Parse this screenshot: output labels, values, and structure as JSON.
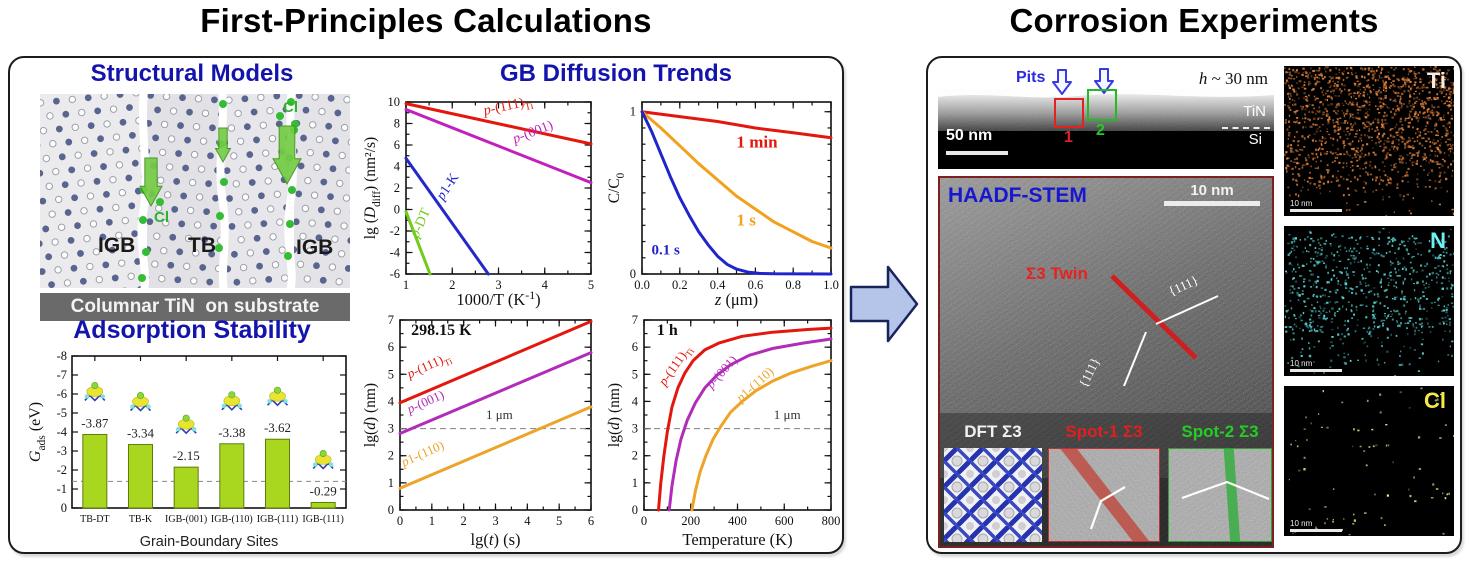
{
  "titles": {
    "left": "First-Principles Calculations",
    "right": "Corrosion Experiments"
  },
  "left_panel": {
    "structural": {
      "title": "Structural Models",
      "grain_labels": [
        "IGB",
        "TB",
        "IGB"
      ],
      "cl_labels": [
        "Cl",
        "Cl"
      ],
      "banner": "Columnar TiN  on substrate"
    },
    "adsorption": {
      "title": "Adsorption Stability"
    },
    "diffusion": {
      "title": "GB Diffusion Trends"
    }
  },
  "right_panel": {
    "stem_top": {
      "pits": "Pits",
      "h_italic": "h",
      "h_rest": " ~ 30 nm",
      "scalebar": "50 nm",
      "box1": "1",
      "box2": "2",
      "layer_top": "TiN",
      "layer_bottom": "Si"
    },
    "haadf": {
      "title": "HAADF-STEM",
      "scalebar": "10 nm",
      "twin": "Σ3 Twin",
      "plane_upper": "{111}",
      "plane_lower": "{111}",
      "insets": [
        {
          "label": "DFT Σ3"
        },
        {
          "label": "Spot-1 Σ3"
        },
        {
          "label": "Spot-2 Σ3"
        }
      ]
    },
    "eds_maps": [
      {
        "label": "Ti",
        "color": "#f3ecdf",
        "dot": "#e2813a",
        "scalebar": "10 nm"
      },
      {
        "label": "N",
        "color": "#6ff0f0",
        "dot": "#59d6d6",
        "scalebar": "10 nm"
      },
      {
        "label": "Cl",
        "color": "#f3ea45",
        "dot": "#e9e98f",
        "scalebar": "10 nm"
      }
    ]
  },
  "chart_data": [
    {
      "id": "adsorption",
      "type": "bar",
      "title": "Adsorption Stability",
      "xlabel": "Grain-Boundary Sites",
      "ylabel_segs": [
        [
          "G",
          "i"
        ],
        [
          "ads",
          "s"
        ],
        [
          " (eV)",
          ""
        ]
      ],
      "categories": [
        "TB-DT",
        "TB-K",
        "IGB-(001)",
        "IGB-(110)",
        "IGB-(111)",
        "IGB-(111)"
      ],
      "values": [
        -3.87,
        -3.34,
        -2.15,
        -3.38,
        -3.62,
        -0.29
      ],
      "ylim": [
        0,
        -8
      ],
      "ytick": 1,
      "refline_y": -1.4,
      "bar_color": "#a9d71f",
      "bar_edge": "#5d7d0a"
    },
    {
      "id": "arrhenius",
      "type": "line",
      "xlim": [
        1,
        5
      ],
      "ylim": [
        -6,
        10
      ],
      "xtick": 1,
      "xminor": 0.5,
      "ytick": 2,
      "yminor": 1,
      "xfmt": 0,
      "xlabel_segs": [
        [
          "1000/T (K",
          ""
        ],
        [
          "-1",
          "p"
        ],
        [
          ")",
          ""
        ]
      ],
      "ylabel_segs": [
        [
          "lg (",
          ""
        ],
        [
          "D",
          "i"
        ],
        [
          "diff",
          "s"
        ],
        [
          ") (nm²/s)",
          ""
        ]
      ],
      "series": [
        {
          "name": "p-(111)Ti",
          "color": "#e3170d",
          "points": [
            [
              1,
              9.85
            ],
            [
              5,
              6.1
            ]
          ]
        },
        {
          "name": "p-(001)",
          "color": "#c21fbc",
          "points": [
            [
              1,
              9.3
            ],
            [
              5,
              2.5
            ]
          ]
        },
        {
          "name": "p1-K",
          "color": "#2328c9",
          "points": [
            [
              1,
              4.75
            ],
            [
              2.78,
              -6
            ]
          ]
        },
        {
          "name": "p-DT",
          "color": "#72ca1b",
          "points": [
            [
              1,
              -0.2
            ],
            [
              1.52,
              -6
            ]
          ]
        }
      ],
      "labels": [
        {
          "segs": [
            [
              "p",
              "i"
            ],
            [
              "-(111)",
              ""
            ],
            [
              "Ti",
              "s"
            ]
          ],
          "x": 2.7,
          "y": 8.8,
          "rot": -12,
          "color": "#e3170d",
          "size": 14
        },
        {
          "segs": [
            [
              "p",
              "i"
            ],
            [
              "-(001)",
              ""
            ]
          ],
          "x": 3.35,
          "y": 6.15,
          "rot": -21,
          "color": "#c21fbc",
          "size": 14
        },
        {
          "segs": [
            [
              "p",
              "i"
            ],
            [
              "1-K",
              ""
            ]
          ],
          "x": 1.8,
          "y": 0.8,
          "rot": -56,
          "color": "#2328c9",
          "size": 14
        },
        {
          "segs": [
            [
              "p",
              "i"
            ],
            [
              "-DT",
              ""
            ]
          ],
          "x": 1.26,
          "y": -2.7,
          "rot": -66,
          "color": "#72ca1b",
          "size": 14
        }
      ]
    },
    {
      "id": "conc",
      "type": "line",
      "xlim": [
        0,
        1
      ],
      "ylim": [
        0,
        1.06
      ],
      "xtick": 0.2,
      "xminor": 0.1,
      "ytick": 1,
      "yminor": 0.1,
      "xfmt": 1,
      "xlabel_segs": [
        [
          "z",
          "i"
        ],
        [
          " (μm)",
          ""
        ]
      ],
      "ylabel_segs": [
        [
          "C/C",
          ""
        ],
        [
          "0",
          "s"
        ]
      ],
      "series": [
        {
          "name": "1 min",
          "color": "#e3170d",
          "points": [
            [
              0,
              1
            ],
            [
              0.2,
              0.97
            ],
            [
              0.4,
              0.94
            ],
            [
              0.6,
              0.9
            ],
            [
              0.8,
              0.87
            ],
            [
              1,
              0.84
            ]
          ]
        },
        {
          "name": "1 s",
          "color": "#f2a11c",
          "points": [
            [
              0,
              1
            ],
            [
              0.1,
              0.9
            ],
            [
              0.2,
              0.79
            ],
            [
              0.3,
              0.68
            ],
            [
              0.4,
              0.58
            ],
            [
              0.5,
              0.48
            ],
            [
              0.6,
              0.4
            ],
            [
              0.7,
              0.32
            ],
            [
              0.8,
              0.26
            ],
            [
              0.9,
              0.2
            ],
            [
              1,
              0.16
            ]
          ]
        },
        {
          "name": "0.1 s",
          "color": "#1f24cb",
          "points": [
            [
              0,
              1
            ],
            [
              0.05,
              0.88
            ],
            [
              0.1,
              0.74
            ],
            [
              0.15,
              0.6
            ],
            [
              0.2,
              0.47
            ],
            [
              0.25,
              0.36
            ],
            [
              0.3,
              0.26
            ],
            [
              0.35,
              0.18
            ],
            [
              0.4,
              0.11
            ],
            [
              0.45,
              0.06
            ],
            [
              0.5,
              0.03
            ],
            [
              0.56,
              0.012
            ],
            [
              0.62,
              0.004
            ],
            [
              0.7,
              0.001
            ],
            [
              1,
              0
            ]
          ]
        }
      ],
      "labels": [
        {
          "text": "1 min",
          "x": 0.5,
          "y": 0.78,
          "color": "#e3170d",
          "size": 17,
          "bold": true
        },
        {
          "text": "1 s",
          "x": 0.5,
          "y": 0.3,
          "color": "#f2a11c",
          "size": 17,
          "bold": true
        },
        {
          "text": "0.1 s",
          "x": 0.05,
          "y": 0.12,
          "color": "#1f24cb",
          "size": 15,
          "bold": true
        }
      ]
    },
    {
      "id": "growth_time",
      "type": "line",
      "xlim": [
        0,
        6
      ],
      "ylim": [
        0,
        7
      ],
      "xtick": 1,
      "xminor": 0.5,
      "ytick": 1,
      "yminor": 0.5,
      "xfmt": 0,
      "xlabel_segs": [
        [
          "lg(",
          ""
        ],
        [
          "t",
          "i"
        ],
        [
          ") (s)",
          ""
        ]
      ],
      "ylabel_segs": [
        [
          "lg(",
          ""
        ],
        [
          "d",
          "i"
        ],
        [
          ") (nm)",
          ""
        ]
      ],
      "refline": {
        "y": 3,
        "label": "1 μm",
        "lx": 2.7,
        "ly": 3.35
      },
      "series": [
        {
          "name": "p-(111)Ti",
          "color": "#e3170d",
          "points": [
            [
              0,
              3.95
            ],
            [
              6,
              6.95
            ]
          ]
        },
        {
          "name": "p-(001)",
          "color": "#b12cb8",
          "points": [
            [
              0,
              2.82
            ],
            [
              6,
              5.8
            ]
          ]
        },
        {
          "name": "p1-(110)",
          "color": "#eda428",
          "points": [
            [
              0,
              0.8
            ],
            [
              6,
              3.8
            ]
          ]
        }
      ],
      "labels": [
        {
          "text": "298.15 K",
          "x": 0.35,
          "y": 6.45,
          "color": "#111111",
          "size": 16,
          "bold": true
        },
        {
          "segs": [
            [
              "p",
              "i"
            ],
            [
              "-(111)",
              ""
            ],
            [
              "Ti",
              "s"
            ]
          ],
          "x": 0.3,
          "y": 4.85,
          "rot": -24,
          "color": "#e3170d",
          "size": 13
        },
        {
          "segs": [
            [
              "p",
              "i"
            ],
            [
              "-(001)",
              ""
            ]
          ],
          "x": 0.3,
          "y": 3.55,
          "rot": -24,
          "color": "#b12cb8",
          "size": 13
        },
        {
          "segs": [
            [
              "p",
              "i"
            ],
            [
              "1-(110)",
              ""
            ]
          ],
          "x": 0.12,
          "y": 1.6,
          "rot": -24,
          "color": "#eda428",
          "size": 13
        }
      ]
    },
    {
      "id": "growth_temp",
      "type": "line",
      "xlim": [
        0,
        800
      ],
      "ylim": [
        0,
        7
      ],
      "xtick": 200,
      "xminor": 100,
      "ytick": 1,
      "yminor": 0.5,
      "xfmt": 0,
      "xlabel_segs": [
        [
          "Temperature (K)",
          ""
        ]
      ],
      "ylabel_segs": [
        [
          "lg(",
          ""
        ],
        [
          "d",
          "i"
        ],
        [
          ") (nm)",
          ""
        ]
      ],
      "refline": {
        "y": 3,
        "label": "1 μm",
        "lx": 555,
        "ly": 3.35
      },
      "series": [
        {
          "name": "p-(111)Ti",
          "color": "#e3170d",
          "points": [
            [
              62,
              0
            ],
            [
              72,
              1
            ],
            [
              85,
              2
            ],
            [
              100,
              2.9
            ],
            [
              120,
              3.8
            ],
            [
              145,
              4.5
            ],
            [
              175,
              5.05
            ],
            [
              210,
              5.5
            ],
            [
              260,
              5.9
            ],
            [
              320,
              6.15
            ],
            [
              420,
              6.4
            ],
            [
              550,
              6.55
            ],
            [
              700,
              6.65
            ],
            [
              800,
              6.7
            ]
          ]
        },
        {
          "name": "p-(001)",
          "color": "#b12cb8",
          "points": [
            [
              108,
              0
            ],
            [
              120,
              0.9
            ],
            [
              137,
              1.8
            ],
            [
              158,
              2.6
            ],
            [
              185,
              3.3
            ],
            [
              220,
              3.95
            ],
            [
              260,
              4.5
            ],
            [
              310,
              4.95
            ],
            [
              370,
              5.35
            ],
            [
              450,
              5.7
            ],
            [
              550,
              5.95
            ],
            [
              680,
              6.15
            ],
            [
              800,
              6.3
            ]
          ]
        },
        {
          "name": "p1-(110)",
          "color": "#eda428",
          "points": [
            [
              205,
              0
            ],
            [
              220,
              0.7
            ],
            [
              240,
              1.4
            ],
            [
              265,
              2.0
            ],
            [
              295,
              2.6
            ],
            [
              330,
              3.1
            ],
            [
              370,
              3.6
            ],
            [
              420,
              4.0
            ],
            [
              480,
              4.4
            ],
            [
              550,
              4.75
            ],
            [
              630,
              5.05
            ],
            [
              720,
              5.3
            ],
            [
              800,
              5.5
            ]
          ]
        }
      ],
      "labels": [
        {
          "text": "1 h",
          "x": 55,
          "y": 6.45,
          "color": "#111111",
          "size": 16,
          "bold": true
        },
        {
          "segs": [
            [
              "p",
              "i"
            ],
            [
              "-(111)",
              ""
            ],
            [
              "Ti",
              "s"
            ]
          ],
          "x": 90,
          "y": 4.55,
          "rot": -55,
          "color": "#e3170d",
          "size": 13
        },
        {
          "segs": [
            [
              "p",
              "i"
            ],
            [
              "-(001)",
              ""
            ]
          ],
          "x": 290,
          "y": 4.45,
          "rot": -48,
          "color": "#b12cb8",
          "size": 13
        },
        {
          "segs": [
            [
              "p",
              "i"
            ],
            [
              "1-(110)",
              ""
            ]
          ],
          "x": 415,
          "y": 3.95,
          "rot": -42,
          "color": "#eda428",
          "size": 13
        }
      ]
    }
  ]
}
